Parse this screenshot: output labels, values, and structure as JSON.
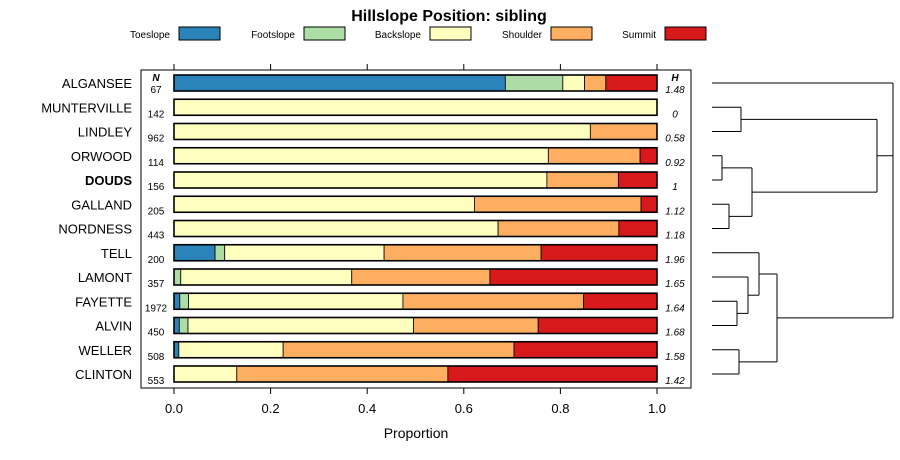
{
  "chart_data": {
    "type": "bar",
    "orientation": "horizontal",
    "stacked": true,
    "title": "Hillslope Position: sibling",
    "xlabel": "Proportion",
    "xlim": [
      0,
      1
    ],
    "x_ticks": [
      "0.0",
      "0.2",
      "0.4",
      "0.6",
      "0.8",
      "1.0"
    ],
    "n_header": "N",
    "h_header": "H",
    "highlighted": "DOUDS",
    "legend": [
      {
        "name": "Toeslope",
        "color": "#2b83ba"
      },
      {
        "name": "Footslope",
        "color": "#abdda4"
      },
      {
        "name": "Backslope",
        "color": "#ffffbf"
      },
      {
        "name": "Shoulder",
        "color": "#fdae61"
      },
      {
        "name": "Summit",
        "color": "#d7191c"
      }
    ],
    "rows": [
      {
        "label": "ALGANSEE",
        "n": "67",
        "h": "1.48",
        "values": [
          0.686,
          0.119,
          0.045,
          0.044,
          0.106
        ]
      },
      {
        "label": "MUNTERVILLE",
        "n": "142",
        "h": "0",
        "values": [
          0,
          0,
          1.0,
          0,
          0
        ]
      },
      {
        "label": "LINDLEY",
        "n": "962",
        "h": "0.58",
        "values": [
          0,
          0,
          0.862,
          0.138,
          0
        ]
      },
      {
        "label": "ORWOOD",
        "n": "114",
        "h": "0.92",
        "values": [
          0,
          0,
          0.775,
          0.19,
          0.035
        ]
      },
      {
        "label": "DOUDS",
        "n": "156",
        "h": "1",
        "values": [
          0,
          0,
          0.772,
          0.148,
          0.08
        ]
      },
      {
        "label": "GALLAND",
        "n": "205",
        "h": "1.12",
        "values": [
          0,
          0,
          0.622,
          0.345,
          0.033
        ]
      },
      {
        "label": "NORDNESS",
        "n": "443",
        "h": "1.18",
        "values": [
          0,
          0,
          0.671,
          0.25,
          0.079
        ]
      },
      {
        "label": "TELL",
        "n": "200",
        "h": "1.96",
        "values": [
          0.085,
          0.02,
          0.33,
          0.325,
          0.24
        ]
      },
      {
        "label": "LAMONT",
        "n": "357",
        "h": "1.65",
        "values": [
          0,
          0.014,
          0.354,
          0.286,
          0.346
        ]
      },
      {
        "label": "FAYETTE",
        "n": "1972",
        "h": "1.64",
        "values": [
          0.012,
          0.018,
          0.444,
          0.374,
          0.152
        ]
      },
      {
        "label": "ALVIN",
        "n": "450",
        "h": "1.68",
        "values": [
          0.011,
          0.018,
          0.467,
          0.258,
          0.246
        ]
      },
      {
        "label": "WELLER",
        "n": "508",
        "h": "1.58",
        "values": [
          0.01,
          0,
          0.216,
          0.478,
          0.296
        ]
      },
      {
        "label": "CLINTON",
        "n": "553",
        "h": "1.42",
        "values": [
          0,
          0,
          0.13,
          0.437,
          0.433
        ]
      }
    ],
    "dendrogram": "hierarchical clustering of the 13 rows (no labels)"
  }
}
